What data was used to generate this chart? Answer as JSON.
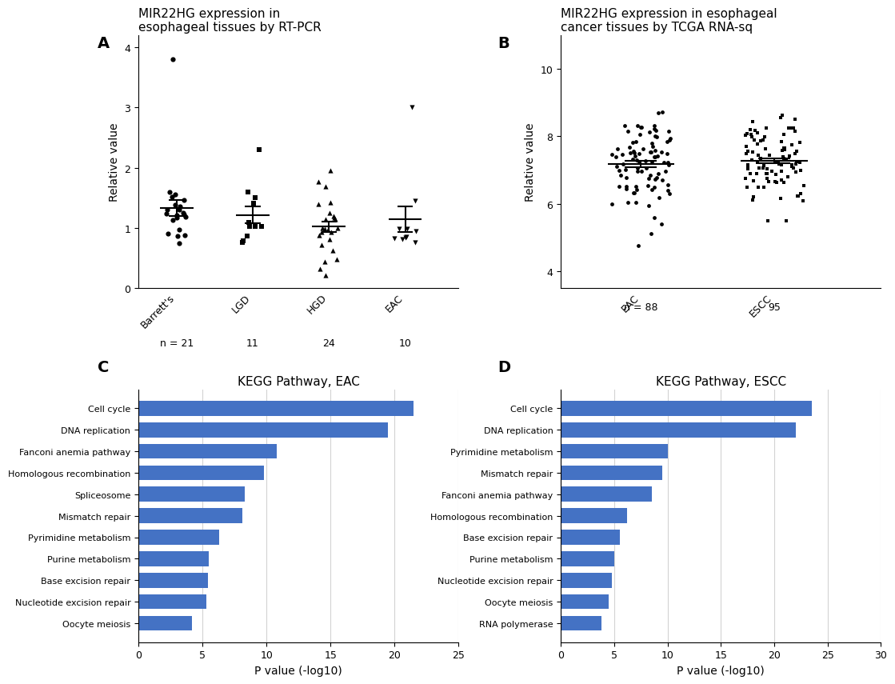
{
  "panel_A": {
    "title": "MIR22HG expression in\nesophageal tissues by RT-PCR",
    "ylabel": "Relative value",
    "categories": [
      "Barrett's",
      "LGD",
      "HGD",
      "EAC"
    ],
    "ns": [
      21,
      11,
      24,
      10
    ],
    "markers": [
      "o",
      "s",
      "^",
      "v"
    ],
    "ylim": [
      0,
      4.2
    ],
    "yticks": [
      0,
      1,
      2,
      3,
      4
    ]
  },
  "panel_B": {
    "title": "MIR22HG expression in esophageal\ncancer tissues by TCGA RNA-sq",
    "ylabel": "Relative value",
    "categories": [
      "EAC",
      "ESCC"
    ],
    "ns": [
      88,
      95
    ],
    "ylim": [
      3.5,
      11
    ],
    "yticks": [
      4,
      6,
      8,
      10
    ]
  },
  "panel_C": {
    "title": "KEGG Pathway, EAC",
    "xlabel": "P value (-log10)",
    "pathways": [
      "Cell cycle",
      "DNA replication",
      "Fanconi anemia pathway",
      "Homologous recombination",
      "Spliceosome",
      "Mismatch repair",
      "Pyrimidine metabolism",
      "Purine metabolism",
      "Base excision repair",
      "Nucleotide excision repair",
      "Oocyte meiosis"
    ],
    "values": [
      21.5,
      19.5,
      10.8,
      9.8,
      8.3,
      8.1,
      6.3,
      5.5,
      5.4,
      5.3,
      4.2
    ],
    "bar_color": "#4472C4",
    "xlim": [
      0,
      25
    ],
    "xticks": [
      0,
      5,
      10,
      15,
      20,
      25
    ]
  },
  "panel_D": {
    "title": "KEGG Pathway, ESCC",
    "xlabel": "P value (-log10)",
    "pathways": [
      "Cell cycle",
      "DNA replication",
      "Pyrimidine metabolism",
      "Mismatch repair",
      "Fanconi anemia pathway",
      "Homologous recombination",
      "Base excision repair",
      "Purine metabolism",
      "Nucleotide excision repair",
      "Oocyte meiosis",
      "RNA polymerase"
    ],
    "values": [
      23.5,
      22.0,
      10.0,
      9.5,
      8.5,
      6.2,
      5.5,
      5.0,
      4.8,
      4.5,
      3.8
    ],
    "bar_color": "#4472C4",
    "xlim": [
      0,
      30
    ],
    "xticks": [
      0,
      5,
      10,
      15,
      20,
      25,
      30
    ]
  },
  "panel_label_fontsize": 14,
  "title_fontsize": 11,
  "axis_fontsize": 10,
  "tick_fontsize": 9,
  "bg_color": "#ffffff"
}
